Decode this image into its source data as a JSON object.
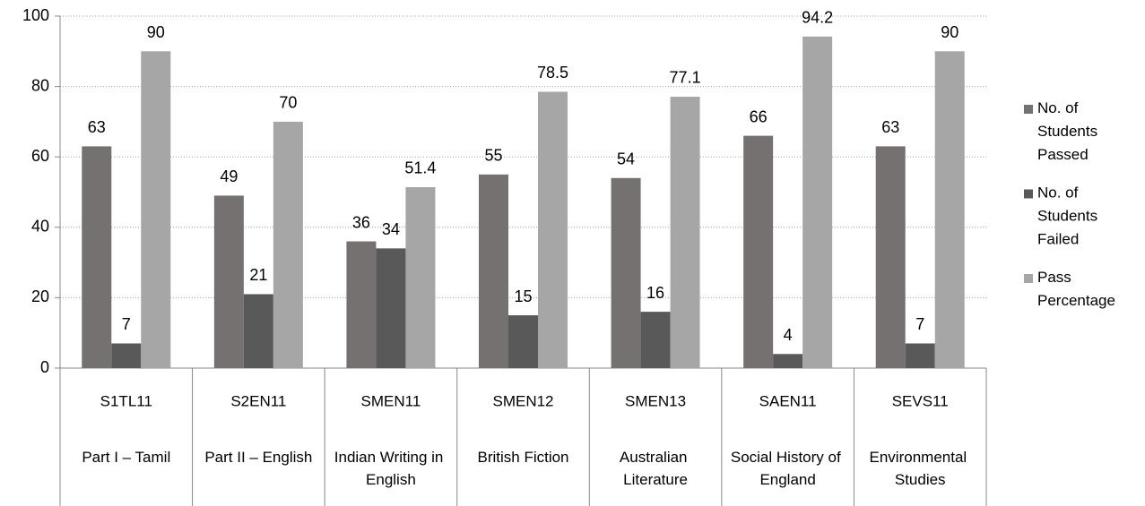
{
  "chart_data": {
    "type": "bar",
    "categories": [
      "S1TL11",
      "S2EN11",
      "SMEN11",
      "SMEN12",
      "SMEN13",
      "SAEN11",
      "SEVS11"
    ],
    "category_names": [
      "Part I – Tamil",
      "Part II – English",
      "Indian Writing in English",
      "British Fiction",
      "Australian Literature",
      "Social History of England",
      "Environmental Studies"
    ],
    "series": [
      {
        "name": "No. of Students Passed",
        "color": "#767171",
        "values": [
          63,
          49,
          36,
          55,
          54,
          66,
          63
        ]
      },
      {
        "name": "No. of Students Failed",
        "color": "#595959",
        "values": [
          7,
          21,
          34,
          15,
          16,
          4,
          7
        ]
      },
      {
        "name": "Pass Percentage",
        "color": "#a6a6a6",
        "values": [
          90,
          70,
          51.4,
          78.5,
          77.1,
          94.2,
          90
        ]
      }
    ],
    "ylim": [
      0,
      100
    ],
    "yticks": [
      0,
      20,
      40,
      60,
      80,
      100
    ],
    "grid": true,
    "legend": "right"
  }
}
